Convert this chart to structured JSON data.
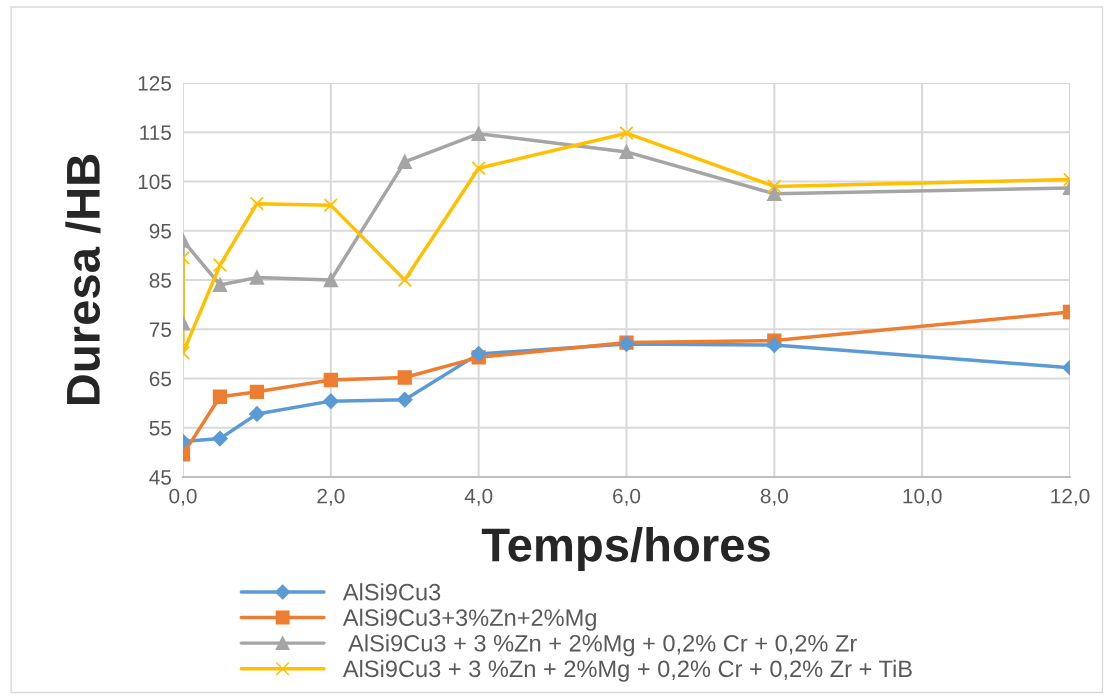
{
  "chart_data": {
    "type": "line",
    "xlabel": "Temps/hores",
    "ylabel": "Duresa /HB",
    "xlim": [
      0,
      12
    ],
    "xticks": [
      {
        "value": 0,
        "label": "0,0"
      },
      {
        "value": 2,
        "label": "2,0"
      },
      {
        "value": 4,
        "label": "4,0"
      },
      {
        "value": 6,
        "label": "6,0"
      },
      {
        "value": 8,
        "label": "8,0"
      },
      {
        "value": 10,
        "label": "10,0"
      },
      {
        "value": 12,
        "label": "12,0"
      }
    ],
    "ylim": [
      45,
      125
    ],
    "yticks": [
      45,
      55,
      65,
      75,
      85,
      95,
      105,
      115,
      125
    ],
    "grid": true,
    "legend": "bottom",
    "series": [
      {
        "name": "AlSi9Cu3",
        "color": "#5b9bd5",
        "marker": "diamond",
        "x": [
          0,
          0.5,
          1,
          2,
          3,
          4,
          6,
          8,
          12
        ],
        "values": [
          52.2,
          52.8,
          57.8,
          60.4,
          60.7,
          70,
          72,
          71.8,
          67.2
        ]
      },
      {
        "name": "AlSi9Cu3+3%Zn+2%Mg",
        "color": "#ed7d31",
        "marker": "square",
        "x": [
          0,
          0.5,
          1,
          2,
          3,
          4,
          6,
          8,
          12
        ],
        "values": [
          49.6,
          61.3,
          62.3,
          64.7,
          65.2,
          69.3,
          72.3,
          72.7,
          78.5
        ]
      },
      {
        "name": " AlSi9Cu3 + 3 %Zn + 2%Mg + 0,2% Cr + 0,2% Zr",
        "color": "#a5a5a5",
        "marker": "triangle",
        "x": [
          0,
          0,
          0.5,
          1,
          2,
          3,
          4,
          6,
          8,
          12
        ],
        "values": [
          76.2,
          93,
          84,
          85.5,
          85,
          109,
          114.7,
          111,
          102.5,
          103.7
        ]
      },
      {
        "name": "AlSi9Cu3 + 3 %Zn + 2%Mg + 0,2% Cr + 0,2% Zr + TiB",
        "color": "#ffc000",
        "marker": "cross",
        "x": [
          0,
          0,
          0.5,
          1,
          2,
          3,
          4,
          6,
          8,
          12
        ],
        "values": [
          89.5,
          70.2,
          88,
          100.5,
          100.2,
          85,
          107.7,
          114.8,
          104,
          105.4
        ]
      }
    ]
  }
}
